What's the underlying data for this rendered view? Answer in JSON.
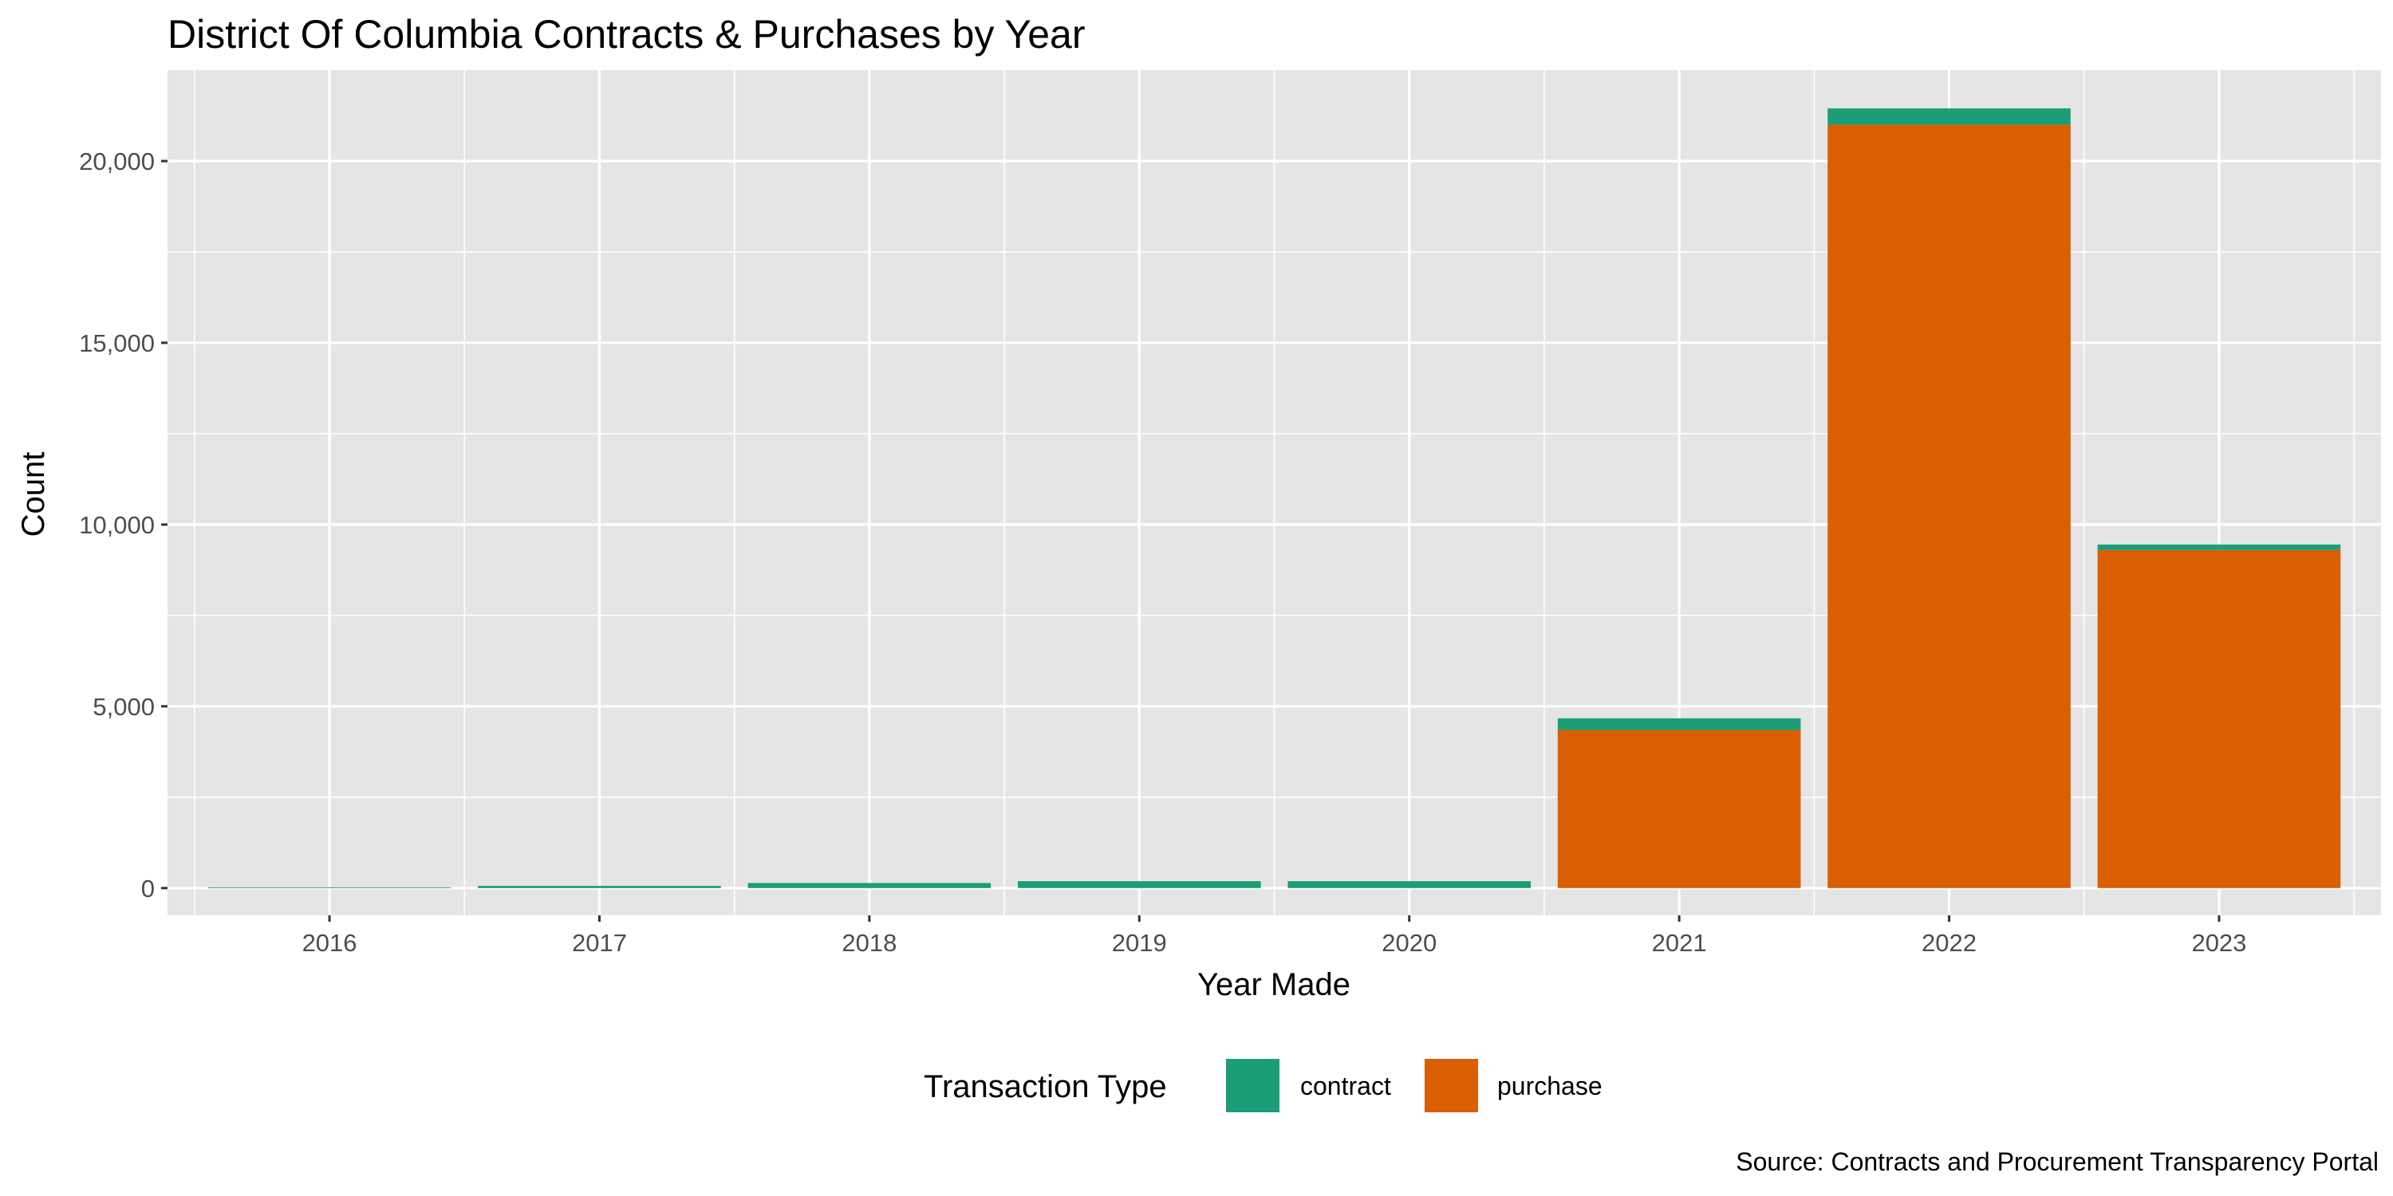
{
  "chart_data": {
    "type": "bar",
    "stacked": true,
    "title": "District Of Columbia Contracts & Purchases by Year",
    "xlabel": "Year Made",
    "ylabel": "Count",
    "categories": [
      "2016",
      "2017",
      "2018",
      "2019",
      "2020",
      "2021",
      "2022",
      "2023"
    ],
    "series": [
      {
        "name": "purchase",
        "color": "#d95f02",
        "values": [
          0,
          0,
          0,
          0,
          0,
          4350,
          21000,
          9300
        ]
      },
      {
        "name": "contract",
        "color": "#1b9e77",
        "values": [
          5,
          60,
          140,
          190,
          190,
          320,
          450,
          150
        ]
      }
    ],
    "ylim": [
      -750,
      22500
    ],
    "yticks": [
      0,
      5000,
      10000,
      15000,
      20000
    ],
    "ytick_labels": [
      "0",
      "5,000",
      "10,000",
      "15,000",
      "20,000"
    ],
    "grid": true,
    "legend": {
      "title": "Transaction Type",
      "position": "bottom",
      "entries": [
        {
          "label": "contract",
          "color": "#1b9e77"
        },
        {
          "label": "purchase",
          "color": "#d95f02"
        }
      ]
    },
    "caption": "Source: Contracts and Procurement Transparency Portal"
  }
}
